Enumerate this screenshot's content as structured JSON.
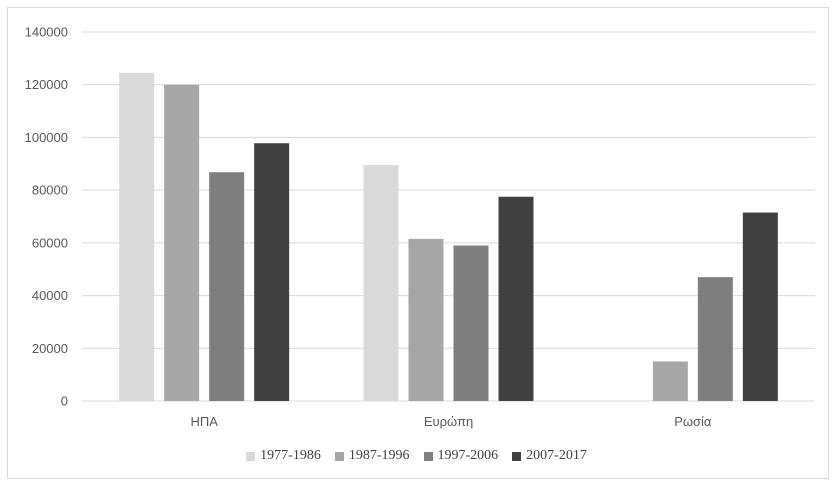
{
  "chart_data": {
    "type": "bar",
    "categories": [
      "ΗΠΑ",
      "Ευρώπη",
      "Ρωσία"
    ],
    "series": [
      {
        "name": "1977-1986",
        "color": "#d9d9d9",
        "values": [
          124500,
          89500,
          0
        ]
      },
      {
        "name": "1987-1996",
        "color": "#a6a6a6",
        "values": [
          120000,
          61500,
          15000
        ]
      },
      {
        "name": "1997-2006",
        "color": "#7f7f7f",
        "values": [
          86800,
          59000,
          47000
        ]
      },
      {
        "name": "2007-2017",
        "color": "#404040",
        "values": [
          97800,
          77500,
          71500
        ]
      }
    ],
    "yticks": [
      0,
      20000,
      40000,
      60000,
      80000,
      100000,
      120000,
      140000
    ],
    "ylim": [
      0,
      140000
    ],
    "gridlines": true,
    "legend_position": "bottom",
    "title": "",
    "xlabel": "",
    "ylabel": ""
  }
}
